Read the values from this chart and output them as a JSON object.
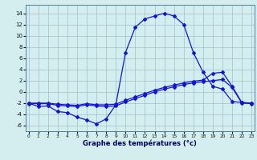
{
  "line1_x": [
    0,
    1,
    2,
    3,
    4,
    5,
    6,
    7,
    8,
    9,
    10,
    11,
    12,
    13,
    14,
    15,
    16,
    17,
    18,
    19,
    20,
    21,
    22,
    23
  ],
  "line1_y": [
    -2.0,
    -2.6,
    -2.5,
    -3.5,
    -3.7,
    -4.5,
    -5.0,
    -5.7,
    -4.8,
    -2.3,
    7.0,
    11.5,
    13.0,
    13.5,
    14.0,
    13.5,
    12.0,
    7.0,
    3.5,
    1.0,
    0.5,
    -1.7,
    -1.9,
    -2.0
  ],
  "line2_x": [
    0,
    1,
    2,
    3,
    4,
    5,
    6,
    7,
    8,
    9,
    10,
    11,
    12,
    13,
    14,
    15,
    16,
    17,
    18,
    19,
    20,
    21,
    22,
    23
  ],
  "line2_y": [
    -2.0,
    -2.0,
    -2.0,
    -2.2,
    -2.3,
    -2.4,
    -2.1,
    -2.3,
    -2.3,
    -2.2,
    -1.5,
    -0.9,
    -0.3,
    0.3,
    0.8,
    1.2,
    1.6,
    1.9,
    2.1,
    3.3,
    3.5,
    1.0,
    -1.9,
    -2.0
  ],
  "line3_x": [
    0,
    1,
    2,
    3,
    4,
    5,
    6,
    7,
    8,
    9,
    10,
    11,
    12,
    13,
    14,
    15,
    16,
    17,
    18,
    19,
    20,
    21,
    22,
    23
  ],
  "line3_y": [
    -2.1,
    -2.1,
    -2.1,
    -2.4,
    -2.5,
    -2.6,
    -2.3,
    -2.5,
    -2.6,
    -2.5,
    -1.8,
    -1.2,
    -0.6,
    0.0,
    0.5,
    0.9,
    1.3,
    1.6,
    1.8,
    2.0,
    2.2,
    0.8,
    -2.0,
    -2.1
  ],
  "line_color": "#1515d0",
  "bg_color": "#d4eef0",
  "grid_color": "#a0bfc8",
  "xlabel": "Graphe des températures (°c)",
  "yticks": [
    -6,
    -4,
    -2,
    0,
    2,
    4,
    6,
    8,
    10,
    12,
    14
  ],
  "xticks": [
    0,
    1,
    2,
    3,
    4,
    5,
    6,
    7,
    8,
    9,
    10,
    11,
    12,
    13,
    14,
    15,
    16,
    17,
    18,
    19,
    20,
    21,
    22,
    23
  ],
  "ylim": [
    -7.0,
    15.5
  ],
  "xlim": [
    -0.3,
    23.3
  ]
}
